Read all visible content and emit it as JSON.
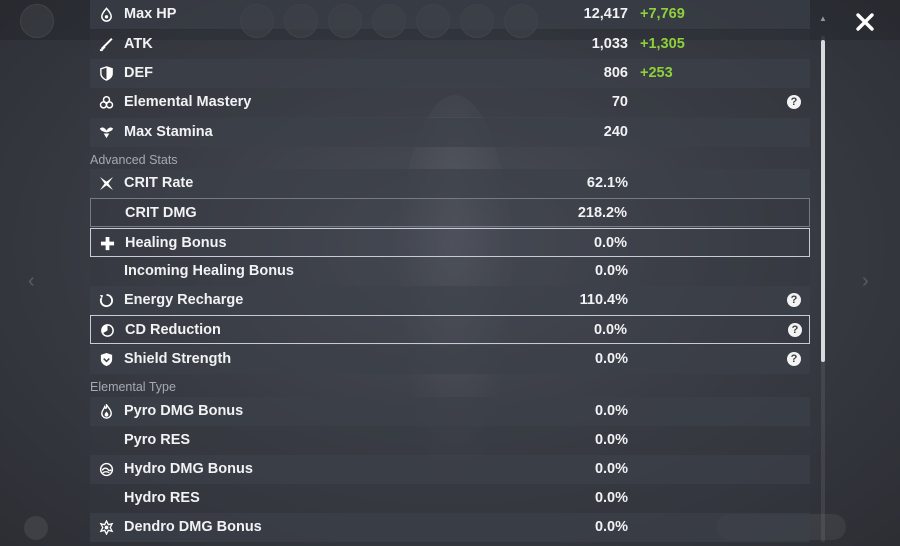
{
  "close_icon": "close-x-icon",
  "sections": {
    "advanced": "Advanced Stats",
    "elemental": "Elemental Type"
  },
  "base_stats": [
    {
      "name": "Max HP",
      "base": "12,417",
      "bonus": "+7,769",
      "icon": "hp-drop-icon"
    },
    {
      "name": "ATK",
      "base": "1,033",
      "bonus": "+1,305",
      "icon": "sword-icon"
    },
    {
      "name": "DEF",
      "base": "806",
      "bonus": "+253",
      "icon": "shield-half-icon"
    },
    {
      "name": "Elemental Mastery",
      "base": "70",
      "bonus": "",
      "icon": "elemental-mastery-icon"
    },
    {
      "name": "Max Stamina",
      "base": "240",
      "bonus": "",
      "icon": "stamina-wings-icon"
    }
  ],
  "advanced_stats": [
    {
      "name": "CRIT Rate",
      "value": "62.1%",
      "icon": "crit-star-icon"
    },
    {
      "name": "CRIT DMG",
      "value": "218.2%",
      "icon": ""
    },
    {
      "name": "Healing Bonus",
      "value": "0.0%",
      "icon": "healing-cross-icon"
    },
    {
      "name": "Incoming Healing Bonus",
      "value": "0.0%",
      "icon": ""
    },
    {
      "name": "Energy Recharge",
      "value": "110.4%",
      "icon": "energy-recharge-icon"
    },
    {
      "name": "CD Reduction",
      "value": "0.0%",
      "icon": "cd-reduction-icon"
    },
    {
      "name": "Shield Strength",
      "value": "0.0%",
      "icon": "shield-strength-icon"
    }
  ],
  "elemental_stats": [
    {
      "name": "Pyro DMG Bonus",
      "value": "0.0%",
      "icon": "pyro-icon"
    },
    {
      "name": "Pyro RES",
      "value": "0.0%",
      "icon": ""
    },
    {
      "name": "Hydro DMG Bonus",
      "value": "0.0%",
      "icon": "hydro-icon"
    },
    {
      "name": "Hydro RES",
      "value": "0.0%",
      "icon": ""
    },
    {
      "name": "Dendro DMG Bonus",
      "value": "0.0%",
      "icon": "dendro-icon"
    }
  ],
  "colors": {
    "bonus_green": "#8ed23a",
    "text_white": "#f1f2f4",
    "section_gray": "#a4a9b3"
  },
  "help_glyph": "?"
}
